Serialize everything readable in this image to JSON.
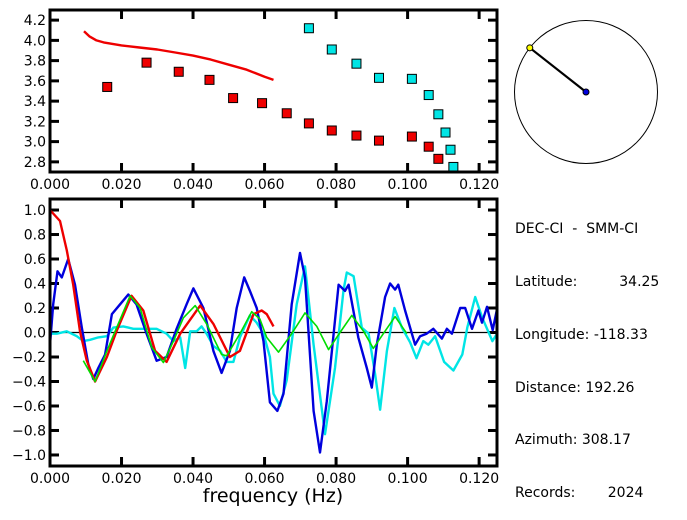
{
  "colors": {
    "red": "#ee0000",
    "cyan": "#00e5e5",
    "blue": "#0000dd",
    "green": "#00dd00",
    "black": "#000000",
    "station": "#ffff00",
    "center": "#0000dd"
  },
  "info": {
    "pair": "DEC-CI  -  SMM-CI",
    "latitude_label": "Latitude:",
    "latitude": "34.25",
    "longitude_label": "Longitude:",
    "longitude": "-118.33",
    "distance_label": "Distance:",
    "distance": "192.26",
    "azimuth_label": "Azimuth:",
    "azimuth": "308.17",
    "records_label": "Records:",
    "records": "2024"
  },
  "compass": {
    "azimuth_deg": 308.17
  },
  "chart_data": [
    {
      "type": "scatter",
      "title": "",
      "xlabel": "",
      "ylabel": "",
      "xlim": [
        0,
        0.125
      ],
      "ylim": [
        2.7,
        4.3
      ],
      "xticks": [
        "0.000",
        "0.020",
        "0.040",
        "0.060",
        "0.080",
        "0.100",
        "0.120"
      ],
      "yticks": [
        "2.8",
        "3.0",
        "3.2",
        "3.4",
        "3.6",
        "3.8",
        "4.0",
        "4.2"
      ],
      "grid": false,
      "series": [
        {
          "kind": "squares",
          "color": "red",
          "points": [
            [
              0.016,
              3.54
            ],
            [
              0.027,
              3.78
            ],
            [
              0.036,
              3.69
            ],
            [
              0.0446,
              3.61
            ],
            [
              0.0512,
              3.43
            ],
            [
              0.0593,
              3.38
            ],
            [
              0.0662,
              3.28
            ],
            [
              0.0724,
              3.18
            ],
            [
              0.0788,
              3.11
            ],
            [
              0.0857,
              3.06
            ],
            [
              0.092,
              3.01
            ],
            [
              0.1012,
              3.05
            ],
            [
              0.1059,
              2.95
            ],
            [
              0.1086,
              2.83
            ]
          ]
        },
        {
          "kind": "squares",
          "color": "cyan",
          "points": [
            [
              0.0724,
              4.12
            ],
            [
              0.0788,
              3.91
            ],
            [
              0.0857,
              3.77
            ],
            [
              0.092,
              3.63
            ],
            [
              0.1012,
              3.62
            ],
            [
              0.1059,
              3.46
            ],
            [
              0.1086,
              3.27
            ],
            [
              0.1106,
              3.09
            ],
            [
              0.112,
              2.92
            ],
            [
              0.1128,
              2.75
            ]
          ]
        },
        {
          "kind": "line",
          "color": "red",
          "points": [
            [
              0.0095,
              4.09
            ],
            [
              0.011,
              4.04
            ],
            [
              0.013,
              4.0
            ],
            [
              0.015,
              3.98
            ],
            [
              0.02,
              3.95
            ],
            [
              0.025,
              3.93
            ],
            [
              0.03,
              3.91
            ],
            [
              0.035,
              3.88
            ],
            [
              0.04,
              3.85
            ],
            [
              0.045,
              3.81
            ],
            [
              0.05,
              3.76
            ],
            [
              0.055,
              3.71
            ],
            [
              0.06,
              3.64
            ],
            [
              0.0625,
              3.61
            ]
          ]
        }
      ]
    },
    {
      "type": "line",
      "title": "",
      "xlabel": "frequency (Hz)",
      "ylabel": "",
      "xlim": [
        0,
        0.125
      ],
      "ylim": [
        -1.09,
        1.09
      ],
      "xticks": [
        "0.000",
        "0.020",
        "0.040",
        "0.060",
        "0.080",
        "0.100",
        "0.120"
      ],
      "yticks": [
        "-1.0",
        "-0.8",
        "-0.6",
        "-0.4",
        "-0.2",
        "0.0",
        "0.2",
        "0.4",
        "0.6",
        "0.8",
        "1.0"
      ],
      "zero_line": true,
      "grid": false,
      "series": [
        {
          "color": "cyan",
          "points": [
            [
              0,
              -0.01
            ],
            [
              0.0019,
              -0.01
            ],
            [
              0.0047,
              0.01
            ],
            [
              0.0075,
              -0.03
            ],
            [
              0.0093,
              -0.07
            ],
            [
              0.0112,
              -0.06
            ],
            [
              0.0135,
              -0.04
            ],
            [
              0.0159,
              -0.03
            ],
            [
              0.0177,
              0.04
            ],
            [
              0.0205,
              0.05
            ],
            [
              0.0233,
              0.03
            ],
            [
              0.0261,
              0.03
            ],
            [
              0.0298,
              0.03
            ],
            [
              0.0326,
              -0.01
            ],
            [
              0.0345,
              -0.07
            ],
            [
              0.0364,
              -0.04
            ],
            [
              0.0378,
              -0.29
            ],
            [
              0.0392,
              0.01
            ],
            [
              0.041,
              0.01
            ],
            [
              0.0424,
              0.05
            ],
            [
              0.0438,
              -0.01
            ],
            [
              0.0457,
              -0.11
            ],
            [
              0.0476,
              -0.15
            ],
            [
              0.0494,
              -0.24
            ],
            [
              0.0513,
              -0.24
            ],
            [
              0.0531,
              -0.04
            ],
            [
              0.0559,
              0.14
            ],
            [
              0.0578,
              0.08
            ],
            [
              0.0597,
              -0.01
            ],
            [
              0.0615,
              -0.2
            ],
            [
              0.0625,
              -0.5
            ],
            [
              0.0643,
              -0.6
            ],
            [
              0.0662,
              -0.39
            ],
            [
              0.069,
              0.23
            ],
            [
              0.0713,
              0.54
            ],
            [
              0.0737,
              -0.1
            ],
            [
              0.0769,
              -0.83
            ],
            [
              0.0797,
              -0.29
            ],
            [
              0.0821,
              0.35
            ],
            [
              0.083,
              0.49
            ],
            [
              0.0849,
              0.46
            ],
            [
              0.0872,
              0.04
            ],
            [
              0.0891,
              -0.01
            ],
            [
              0.0909,
              -0.34
            ],
            [
              0.0923,
              -0.63
            ],
            [
              0.0942,
              -0.15
            ],
            [
              0.0963,
              0.2
            ],
            [
              0.0984,
              0.04
            ],
            [
              0.1007,
              -0.08
            ],
            [
              0.1025,
              -0.21
            ],
            [
              0.1044,
              -0.07
            ],
            [
              0.1058,
              -0.1
            ],
            [
              0.1077,
              -0.03
            ],
            [
              0.1102,
              -0.24
            ],
            [
              0.1128,
              -0.31
            ],
            [
              0.1153,
              -0.18
            ],
            [
              0.1167,
              0.04
            ],
            [
              0.1189,
              0.29
            ],
            [
              0.1209,
              0.12
            ],
            [
              0.1237,
              -0.07
            ],
            [
              0.125,
              -0.01
            ]
          ]
        },
        {
          "color": "blue",
          "points": [
            [
              0,
              -0.1
            ],
            [
              0.0009,
              0.23
            ],
            [
              0.0021,
              0.5
            ],
            [
              0.0033,
              0.45
            ],
            [
              0.0051,
              0.6
            ],
            [
              0.007,
              0.39
            ],
            [
              0.0089,
              0.04
            ],
            [
              0.0107,
              -0.26
            ],
            [
              0.0121,
              -0.38
            ],
            [
              0.0135,
              -0.29
            ],
            [
              0.0154,
              -0.18
            ],
            [
              0.0173,
              0.15
            ],
            [
              0.0196,
              0.23
            ],
            [
              0.0219,
              0.31
            ],
            [
              0.0242,
              0.23
            ],
            [
              0.027,
              -0.01
            ],
            [
              0.0298,
              -0.23
            ],
            [
              0.0326,
              -0.2
            ],
            [
              0.0354,
              0.03
            ],
            [
              0.0382,
              0.23
            ],
            [
              0.0401,
              0.36
            ],
            [
              0.0429,
              0.2
            ],
            [
              0.0457,
              -0.15
            ],
            [
              0.048,
              -0.33
            ],
            [
              0.0503,
              -0.15
            ],
            [
              0.0522,
              0.2
            ],
            [
              0.0543,
              0.45
            ],
            [
              0.0559,
              0.34
            ],
            [
              0.0578,
              0.2
            ],
            [
              0.0597,
              -0.07
            ],
            [
              0.0615,
              -0.57
            ],
            [
              0.0636,
              -0.64
            ],
            [
              0.0653,
              -0.5
            ],
            [
              0.0676,
              0.23
            ],
            [
              0.0699,
              0.65
            ],
            [
              0.0713,
              0.45
            ],
            [
              0.0737,
              -0.64
            ],
            [
              0.0755,
              -0.98
            ],
            [
              0.0774,
              -0.56
            ],
            [
              0.0807,
              0.39
            ],
            [
              0.0825,
              0.34
            ],
            [
              0.0835,
              0.39
            ],
            [
              0.0862,
              -0.04
            ],
            [
              0.0886,
              -0.29
            ],
            [
              0.09,
              -0.45
            ],
            [
              0.0914,
              -0.1
            ],
            [
              0.0937,
              0.29
            ],
            [
              0.0951,
              0.4
            ],
            [
              0.0965,
              0.35
            ],
            [
              0.0974,
              0.39
            ],
            [
              0.0993,
              0.18
            ],
            [
              0.1021,
              -0.1
            ],
            [
              0.1035,
              -0.03
            ],
            [
              0.1053,
              -0.01
            ],
            [
              0.1072,
              0.03
            ],
            [
              0.1096,
              -0.05
            ],
            [
              0.111,
              0.03
            ],
            [
              0.1124,
              -0.01
            ],
            [
              0.1147,
              0.2
            ],
            [
              0.1161,
              0.2
            ],
            [
              0.118,
              0.03
            ],
            [
              0.1198,
              0.18
            ],
            [
              0.1208,
              0.08
            ],
            [
              0.1222,
              0.21
            ],
            [
              0.1238,
              0.02
            ],
            [
              0.125,
              0.19
            ]
          ]
        },
        {
          "color": "red",
          "points": [
            [
              0,
              1.0
            ],
            [
              0.0028,
              0.91
            ],
            [
              0.0047,
              0.67
            ],
            [
              0.0065,
              0.39
            ],
            [
              0.0084,
              0.01
            ],
            [
              0.0103,
              -0.23
            ],
            [
              0.0126,
              -0.4
            ],
            [
              0.0159,
              -0.2
            ],
            [
              0.0186,
              0.01
            ],
            [
              0.0228,
              0.3
            ],
            [
              0.0261,
              0.18
            ],
            [
              0.0294,
              -0.15
            ],
            [
              0.0326,
              -0.24
            ],
            [
              0.0364,
              -0.01
            ],
            [
              0.042,
              0.22
            ],
            [
              0.0457,
              0.07
            ],
            [
              0.0503,
              -0.2
            ],
            [
              0.0531,
              -0.15
            ],
            [
              0.0569,
              0.15
            ],
            [
              0.0592,
              0.18
            ],
            [
              0.0606,
              0.15
            ],
            [
              0.0625,
              0.05
            ]
          ]
        },
        {
          "color": "green",
          "points": [
            [
              0.0093,
              -0.23
            ],
            [
              0.0126,
              -0.4
            ],
            [
              0.0159,
              -0.15
            ],
            [
              0.0182,
              0.01
            ],
            [
              0.0224,
              0.3
            ],
            [
              0.0252,
              0.2
            ],
            [
              0.0284,
              -0.12
            ],
            [
              0.0317,
              -0.245
            ],
            [
              0.0345,
              -0.07
            ],
            [
              0.0373,
              0.12
            ],
            [
              0.0406,
              0.22
            ],
            [
              0.0438,
              0.07
            ],
            [
              0.048,
              -0.18
            ],
            [
              0.0494,
              -0.19
            ],
            [
              0.0531,
              -0.01
            ],
            [
              0.0564,
              0.17
            ],
            [
              0.0587,
              0.11
            ],
            [
              0.0606,
              -0.04
            ],
            [
              0.0639,
              -0.16
            ],
            [
              0.0676,
              -0.01
            ],
            [
              0.0713,
              0.16
            ],
            [
              0.0746,
              0.05
            ],
            [
              0.0779,
              -0.14
            ],
            [
              0.0811,
              0
            ],
            [
              0.0844,
              0.14
            ],
            [
              0.0877,
              0.01
            ],
            [
              0.0904,
              -0.13
            ],
            [
              0.0932,
              -0.01
            ],
            [
              0.0965,
              0.13
            ],
            [
              0.0998,
              -0.01
            ]
          ]
        }
      ]
    }
  ]
}
